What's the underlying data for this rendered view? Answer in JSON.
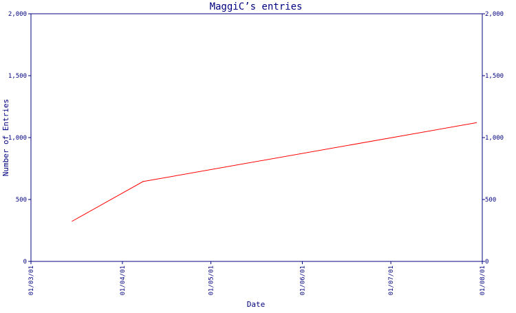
{
  "chart_data": {
    "type": "line",
    "title": "MaggiC’s entries",
    "xlabel": "Date",
    "ylabel": "Number of Entries",
    "grid": false,
    "legend": "none",
    "xlim": [
      "2001-03-01",
      "2001-08-01"
    ],
    "ylim": [
      0,
      2000
    ],
    "x_ticks": [
      "01/03/01",
      "01/04/01",
      "01/05/01",
      "01/06/01",
      "01/07/01",
      "01/08/01"
    ],
    "x_tick_dates": [
      "2001-03-01",
      "2001-04-01",
      "2001-05-01",
      "2001-06-01",
      "2001-07-01",
      "2001-08-01"
    ],
    "y_ticks": [
      0,
      500,
      1000,
      1500,
      2000
    ],
    "y_tick_labels": [
      "0",
      "500",
      "1,000",
      "1,500",
      "2,000"
    ],
    "series": [
      {
        "color": "#ff0000",
        "points": [
          {
            "x": "2001-03-15",
            "y": 325
          },
          {
            "x": "2001-04-08",
            "y": 645
          },
          {
            "x": "2001-07-30",
            "y": 1120
          }
        ]
      }
    ]
  },
  "colors": {
    "axis": "#000080",
    "line": "#ff0000",
    "background": "#ffffff"
  }
}
